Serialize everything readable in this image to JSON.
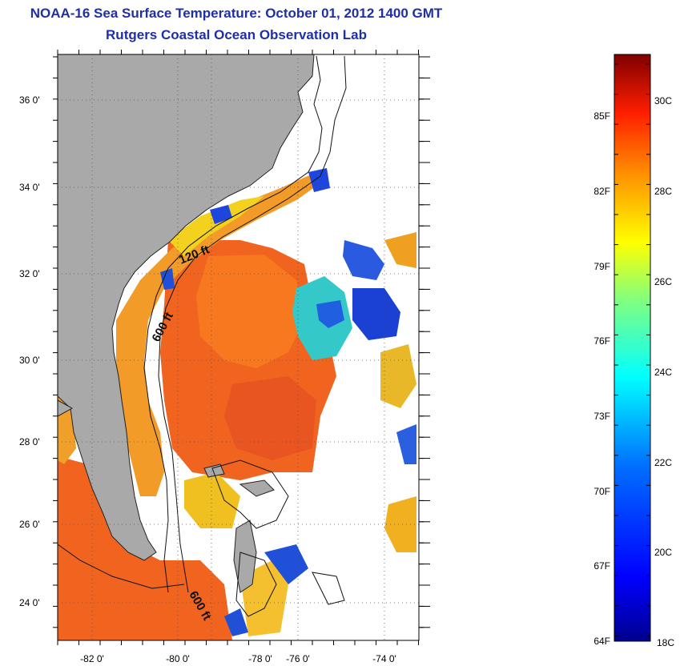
{
  "title": {
    "line1": "NOAA-16 Sea Surface Temperature:  October 01, 2012 1400 GMT",
    "line2": "Rutgers Coastal Ocean Observation Lab"
  },
  "map": {
    "lat_ticks": [
      "36 0'",
      "34 0'",
      "32 0'",
      "30 0'",
      "28 0'",
      "26 0'",
      "24 0'"
    ],
    "lon_ticks": [
      "-82 0'",
      "-80 0'",
      "-78 0'",
      "-76 0'",
      "-74 0'"
    ],
    "lat_range": [
      23,
      37.1
    ],
    "lon_range": [
      -83,
      -72.7
    ],
    "contour_labels": [
      "120 ft",
      "600 ft",
      "600 ft"
    ],
    "colors": {
      "land": "#a9a9a9",
      "ocean_warm": "#f0641e",
      "ocean_cool": "#1e46dc"
    }
  },
  "colorbar": {
    "fahrenheit_labels": [
      "85F",
      "82F",
      "79F",
      "76F",
      "73F",
      "70F",
      "67F",
      "64F"
    ],
    "celsius_labels": [
      "30C",
      "28C",
      "26C",
      "24C",
      "22C",
      "20C",
      "18C"
    ],
    "range_c": [
      18,
      31.5
    ],
    "colors": [
      "#00008f",
      "#0000ff",
      "#0060ff",
      "#00ffff",
      "#60ff90",
      "#ffff00",
      "#ff8000",
      "#ff0000",
      "#800000"
    ]
  }
}
